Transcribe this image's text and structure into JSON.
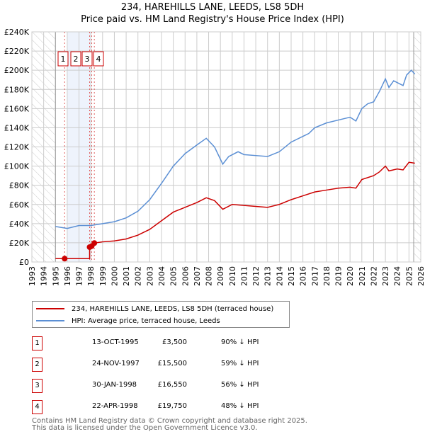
{
  "title_line1": "234, HAREHILLS LANE, LEEDS, LS8 5DH",
  "title_line2": "Price paid vs. HM Land Registry's House Price Index (HPI)",
  "colors": {
    "property": "#cc0000",
    "hpi": "#5b8fd4"
  },
  "chart_data": {
    "type": "line",
    "xlim": [
      1993,
      2026
    ],
    "ylim": [
      0,
      240000
    ],
    "x_ticks": [
      "1993",
      "1994",
      "1995",
      "1996",
      "1997",
      "1998",
      "1999",
      "2000",
      "2001",
      "2002",
      "2003",
      "2004",
      "2005",
      "2006",
      "2007",
      "2008",
      "2009",
      "2010",
      "2011",
      "2012",
      "2013",
      "2014",
      "2015",
      "2016",
      "2017",
      "2018",
      "2019",
      "2020",
      "2021",
      "2022",
      "2023",
      "2024",
      "2025",
      "2026"
    ],
    "y_ticks": [
      "£0",
      "£20K",
      "£40K",
      "£60K",
      "£80K",
      "£100K",
      "£120K",
      "£140K",
      "£160K",
      "£180K",
      "£200K",
      "£220K",
      "£240K"
    ],
    "series": [
      {
        "name": "234, HAREHILLS LANE, LEEDS, LS8 5DH (terraced house)",
        "x": [
          1995,
          1995.78,
          1997.9,
          1997.9,
          1998.08,
          1998.3,
          1999,
          2000,
          2001,
          2002,
          2003,
          2004,
          2005,
          2006,
          2007,
          2007.8,
          2008.5,
          2009.2,
          2010,
          2011,
          2012,
          2013,
          2014,
          2015,
          2016,
          2017,
          2018,
          2019,
          2020,
          2020.5,
          2021,
          2022,
          2022.5,
          2023,
          2023.3,
          2024,
          2024.5,
          2025,
          2025.5
        ],
        "y": [
          3500,
          3500,
          3500,
          15500,
          16550,
          19750,
          21000,
          22000,
          24000,
          28000,
          34000,
          43000,
          52000,
          57000,
          62000,
          67000,
          64000,
          55000,
          60000,
          59000,
          58000,
          57000,
          60000,
          65000,
          69000,
          73000,
          75000,
          77000,
          78000,
          77000,
          86000,
          90000,
          94000,
          100000,
          95000,
          97000,
          96000,
          104000,
          103000
        ]
      },
      {
        "name": "HPI: Average price, terraced house, Leeds",
        "x": [
          1995,
          1996,
          1997,
          1998,
          1999,
          2000,
          2001,
          2002,
          2003,
          2004,
          2005,
          2006,
          2007,
          2007.8,
          2008.5,
          2009.2,
          2009.7,
          2010.5,
          2011,
          2012,
          2013,
          2014,
          2015,
          2016,
          2016.5,
          2017,
          2018,
          2019,
          2020,
          2020.5,
          2021,
          2021.5,
          2022,
          2022.5,
          2023,
          2023.3,
          2023.7,
          2024.5,
          2024.8,
          2025.2,
          2025.5
        ],
        "y": [
          37000,
          35000,
          38000,
          38000,
          40000,
          42000,
          46000,
          53000,
          65000,
          82000,
          100000,
          113000,
          122000,
          129000,
          120000,
          102000,
          110000,
          115000,
          112000,
          111000,
          110000,
          115000,
          125000,
          131000,
          134000,
          140000,
          145000,
          148000,
          151000,
          147000,
          160000,
          165000,
          167000,
          178000,
          191000,
          182000,
          189000,
          184000,
          195000,
          200000,
          196000
        ]
      }
    ],
    "sales": [
      {
        "label": "1",
        "x": 1995.78,
        "y": 3500
      },
      {
        "label": "2",
        "x": 1997.9,
        "y": 15500
      },
      {
        "label": "3",
        "x": 1998.08,
        "y": 16550
      },
      {
        "label": "4",
        "x": 1998.3,
        "y": 19750
      }
    ],
    "shaded_band": [
      1996,
      1998
    ],
    "hatched_ranges": [
      [
        1993,
        1995
      ],
      [
        2025.4,
        2026
      ]
    ]
  },
  "legend": {
    "property": "234, HAREHILLS LANE, LEEDS, LS8 5DH (terraced house)",
    "hpi": "HPI: Average price, terraced house, Leeds"
  },
  "table": [
    {
      "num": "1",
      "date": "13-OCT-1995",
      "price": "£3,500",
      "hpi": "90% ↓ HPI"
    },
    {
      "num": "2",
      "date": "24-NOV-1997",
      "price": "£15,500",
      "hpi": "59% ↓ HPI"
    },
    {
      "num": "3",
      "date": "30-JAN-1998",
      "price": "£16,550",
      "hpi": "56% ↓ HPI"
    },
    {
      "num": "4",
      "date": "22-APR-1998",
      "price": "£19,750",
      "hpi": "48% ↓ HPI"
    }
  ],
  "footer1": "Contains HM Land Registry data © Crown copyright and database right 2025.",
  "footer2": "This data is licensed under the Open Government Licence v3.0."
}
